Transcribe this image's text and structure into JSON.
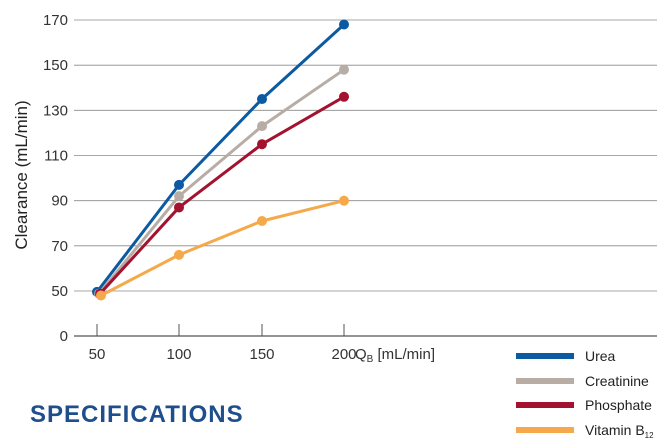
{
  "chart_data": {
    "type": "line",
    "x": [
      50,
      100,
      150,
      200
    ],
    "x_tick_labels": [
      "50",
      "100",
      "150",
      "200"
    ],
    "x_unit_label": "Q",
    "x_unit_subscript": "B",
    "x_unit_suffix": " [mL/min]",
    "ylabel": "Clearance (mL/min)",
    "y_ticks": [
      0,
      50,
      70,
      90,
      110,
      130,
      150,
      170
    ],
    "y_tick_labels": [
      "0",
      "50",
      "70",
      "90",
      "110",
      "130",
      "150",
      "170"
    ],
    "grid": true,
    "legend_position": "bottom-right",
    "series": [
      {
        "name": "Urea",
        "name_subscript": "",
        "color": "#0b5aa2",
        "values": [
          49,
          97,
          135,
          168
        ]
      },
      {
        "name": "Creatinine",
        "name_subscript": "",
        "color": "#b7ada5",
        "values": [
          47,
          92,
          123,
          148
        ]
      },
      {
        "name": "Phosphate",
        "name_subscript": "",
        "color": "#a3132f",
        "values": [
          47,
          87,
          115,
          136
        ]
      },
      {
        "name": "Vitamin B",
        "name_subscript": "12",
        "color": "#f5a94a",
        "values": [
          45,
          66,
          81,
          90
        ]
      }
    ]
  },
  "section_heading": "SPECIFICATIONS"
}
